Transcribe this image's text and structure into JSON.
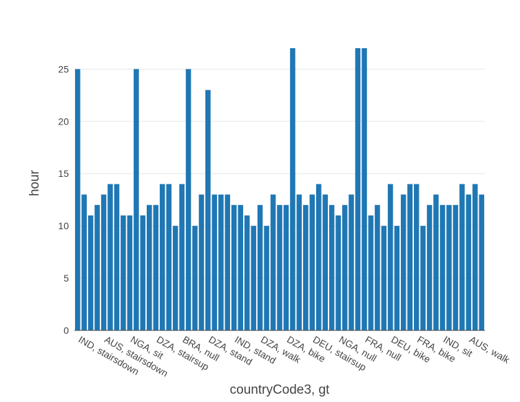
{
  "chart_data": {
    "type": "bar",
    "xlabel": "countryCode3, gt",
    "ylabel": "hour",
    "ylim": [
      0,
      27
    ],
    "yticks": [
      0,
      5,
      10,
      15,
      20,
      25
    ],
    "grid": true,
    "bar_color": "#1f77b4",
    "tick_labels": [
      {
        "index": 0,
        "label": "IND, stairsdown"
      },
      {
        "index": 4,
        "label": "AUS, stairsdown"
      },
      {
        "index": 8,
        "label": "NGA, sit"
      },
      {
        "index": 12,
        "label": "DZA, stairsup"
      },
      {
        "index": 16,
        "label": "BRA, null"
      },
      {
        "index": 20,
        "label": "DZA, stand"
      },
      {
        "index": 24,
        "label": "IND, stand"
      },
      {
        "index": 28,
        "label": "DZA, walk"
      },
      {
        "index": 32,
        "label": "DZA, bike"
      },
      {
        "index": 36,
        "label": "DEU, stairsup"
      },
      {
        "index": 40,
        "label": "NGA, null"
      },
      {
        "index": 44,
        "label": "FRA, null"
      },
      {
        "index": 48,
        "label": "DEU, bike"
      },
      {
        "index": 52,
        "label": "FRA, bike"
      },
      {
        "index": 56,
        "label": "IND, sit"
      },
      {
        "index": 60,
        "label": "AUS, walk"
      }
    ],
    "values": [
      25,
      13,
      11,
      12,
      13,
      14,
      14,
      11,
      11,
      25,
      11,
      12,
      12,
      14,
      14,
      10,
      14,
      25,
      10,
      13,
      23,
      13,
      13,
      13,
      12,
      12,
      11,
      10,
      12,
      10,
      13,
      12,
      12,
      27,
      13,
      12,
      13,
      14,
      13,
      12,
      11,
      12,
      13,
      27,
      27,
      11,
      12,
      10,
      14,
      10,
      13,
      14,
      14,
      10,
      12,
      13,
      12,
      12,
      12,
      14,
      13,
      14,
      13
    ]
  }
}
